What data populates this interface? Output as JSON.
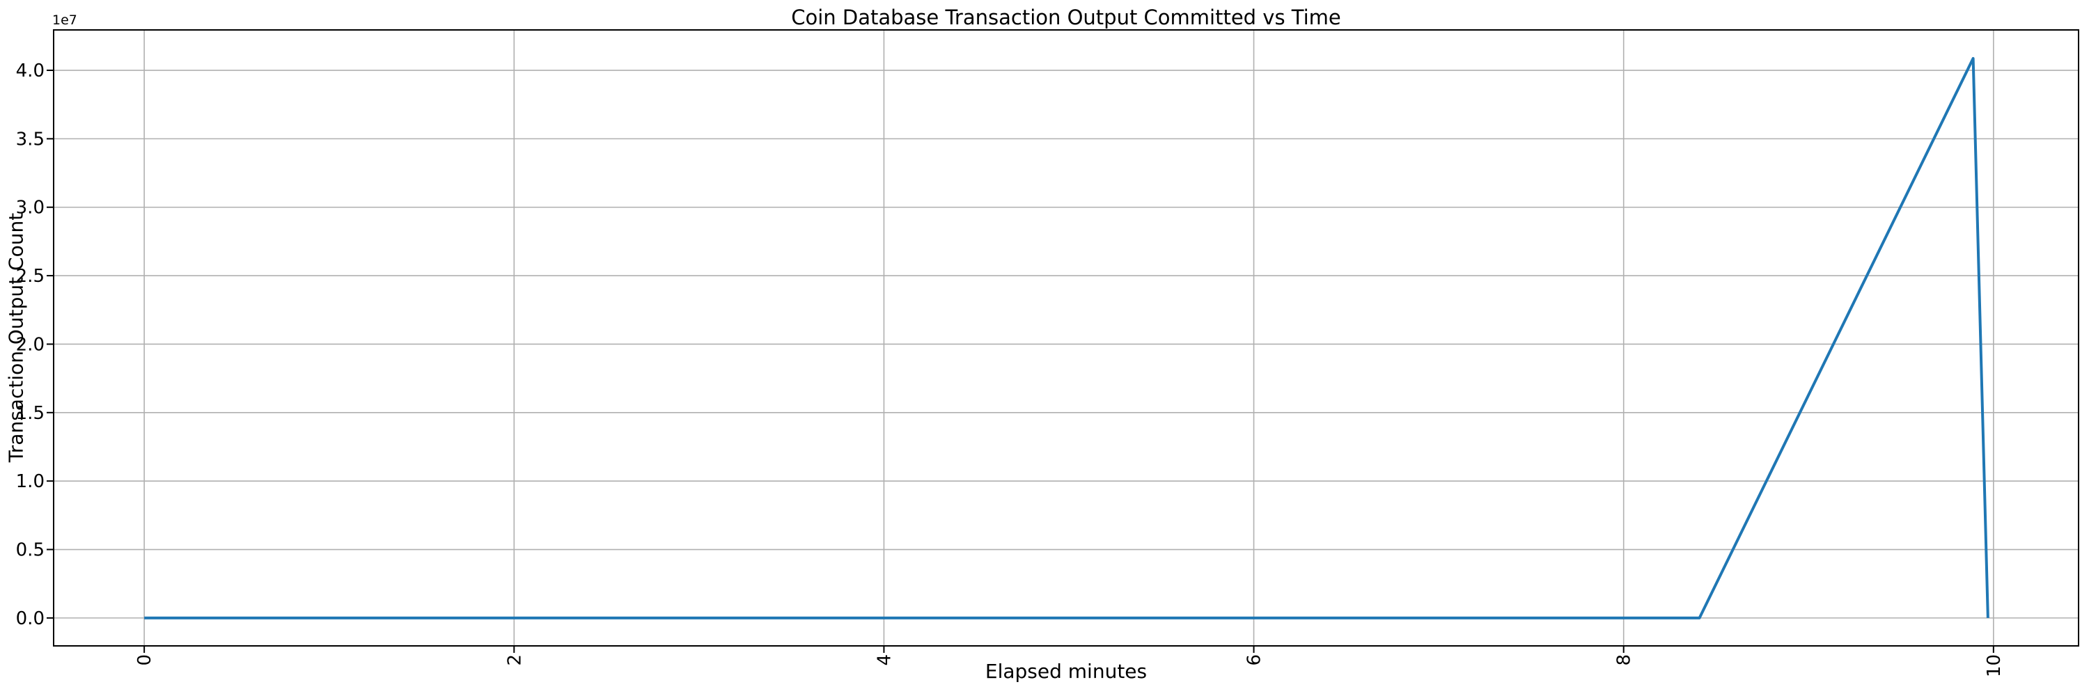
{
  "chart_data": {
    "type": "line",
    "title": "Coin Database Transaction Output Committed vs Time",
    "xlabel": "Elapsed minutes",
    "ylabel": "Transaction Output Count",
    "y_offset_text": "1e7",
    "grid": true,
    "legend": "none",
    "xlim": [
      -0.49,
      10.46
    ],
    "ylim": [
      -2040000,
      42950000
    ],
    "x_tick_rotation": 90,
    "x_ticks": [
      {
        "value": 0,
        "label": "0"
      },
      {
        "value": 2,
        "label": "2"
      },
      {
        "value": 4,
        "label": "4"
      },
      {
        "value": 6,
        "label": "6"
      },
      {
        "value": 8,
        "label": "8"
      },
      {
        "value": 10,
        "label": "10"
      }
    ],
    "y_ticks": [
      {
        "value": 0,
        "label": "0.0"
      },
      {
        "value": 5000000,
        "label": "0.5"
      },
      {
        "value": 10000000,
        "label": "1.0"
      },
      {
        "value": 15000000,
        "label": "1.5"
      },
      {
        "value": 20000000,
        "label": "2.0"
      },
      {
        "value": 25000000,
        "label": "2.5"
      },
      {
        "value": 30000000,
        "label": "3.0"
      },
      {
        "value": 35000000,
        "label": "3.5"
      },
      {
        "value": 40000000,
        "label": "4.0"
      }
    ],
    "series": [
      {
        "name": "Transaction Output Committed",
        "color": "#1f77b4",
        "x": [
          0.0,
          8.41,
          9.89,
          9.97
        ],
        "y": [
          0,
          0,
          40870000,
          0
        ]
      }
    ],
    "colors": {
      "line": "#1f77b4",
      "grid": "#b0b0b0",
      "spine": "#000000",
      "background": "#ffffff",
      "text": "#000000"
    }
  }
}
